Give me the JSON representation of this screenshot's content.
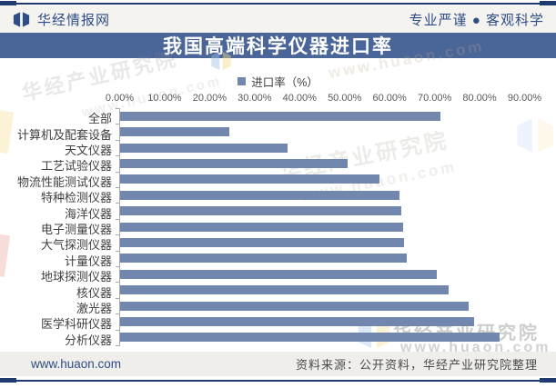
{
  "header": {
    "brand": "华经情报网",
    "tagline": "专业严谨 ● 客观科学"
  },
  "title": "我国高端科学仪器进口率",
  "legend_label": "进口率（%）",
  "chart_data": {
    "type": "bar",
    "orientation": "horizontal",
    "title": "我国高端科学仪器进口率",
    "legend": [
      "进口率（%）"
    ],
    "legend_position": "top-center",
    "grid": false,
    "xlabel": "",
    "ylabel": "",
    "xlim": [
      0,
      90
    ],
    "x_ticks": [
      "0.00%",
      "10.00%",
      "20.00%",
      "30.00%",
      "40.00%",
      "50.00%",
      "60.00%",
      "70.00%",
      "80.00%",
      "90.00%"
    ],
    "categories": [
      "全部",
      "计算机及配套设备",
      "天文仪器",
      "工艺试验仪器",
      "物流性能测试仪器",
      "特种检测仪器",
      "海洋仪器",
      "电子测量仪器",
      "大气探测仪器",
      "计量仪器",
      "地球探测仪器",
      "核仪器",
      "激光器",
      "医学科研仪器",
      "分析仪器"
    ],
    "values": [
      71.2,
      24.2,
      37.3,
      50.6,
      57.7,
      62.0,
      62.5,
      62.8,
      63.1,
      63.8,
      70.3,
      73.0,
      77.4,
      78.6,
      84.3
    ],
    "bar_color": "#7187ad"
  },
  "footer": {
    "website": "www.huaon.com",
    "source": "资料来源：公开资料，华经产业研究院整理"
  },
  "watermark": {
    "text": "华经产业研究院",
    "url": "www.huaon.com"
  },
  "colors": {
    "accent_navy": "#1f3a6e",
    "title_band": "#4a6598",
    "brand_blue": "#2e4d87",
    "bar": "#7187ad"
  }
}
